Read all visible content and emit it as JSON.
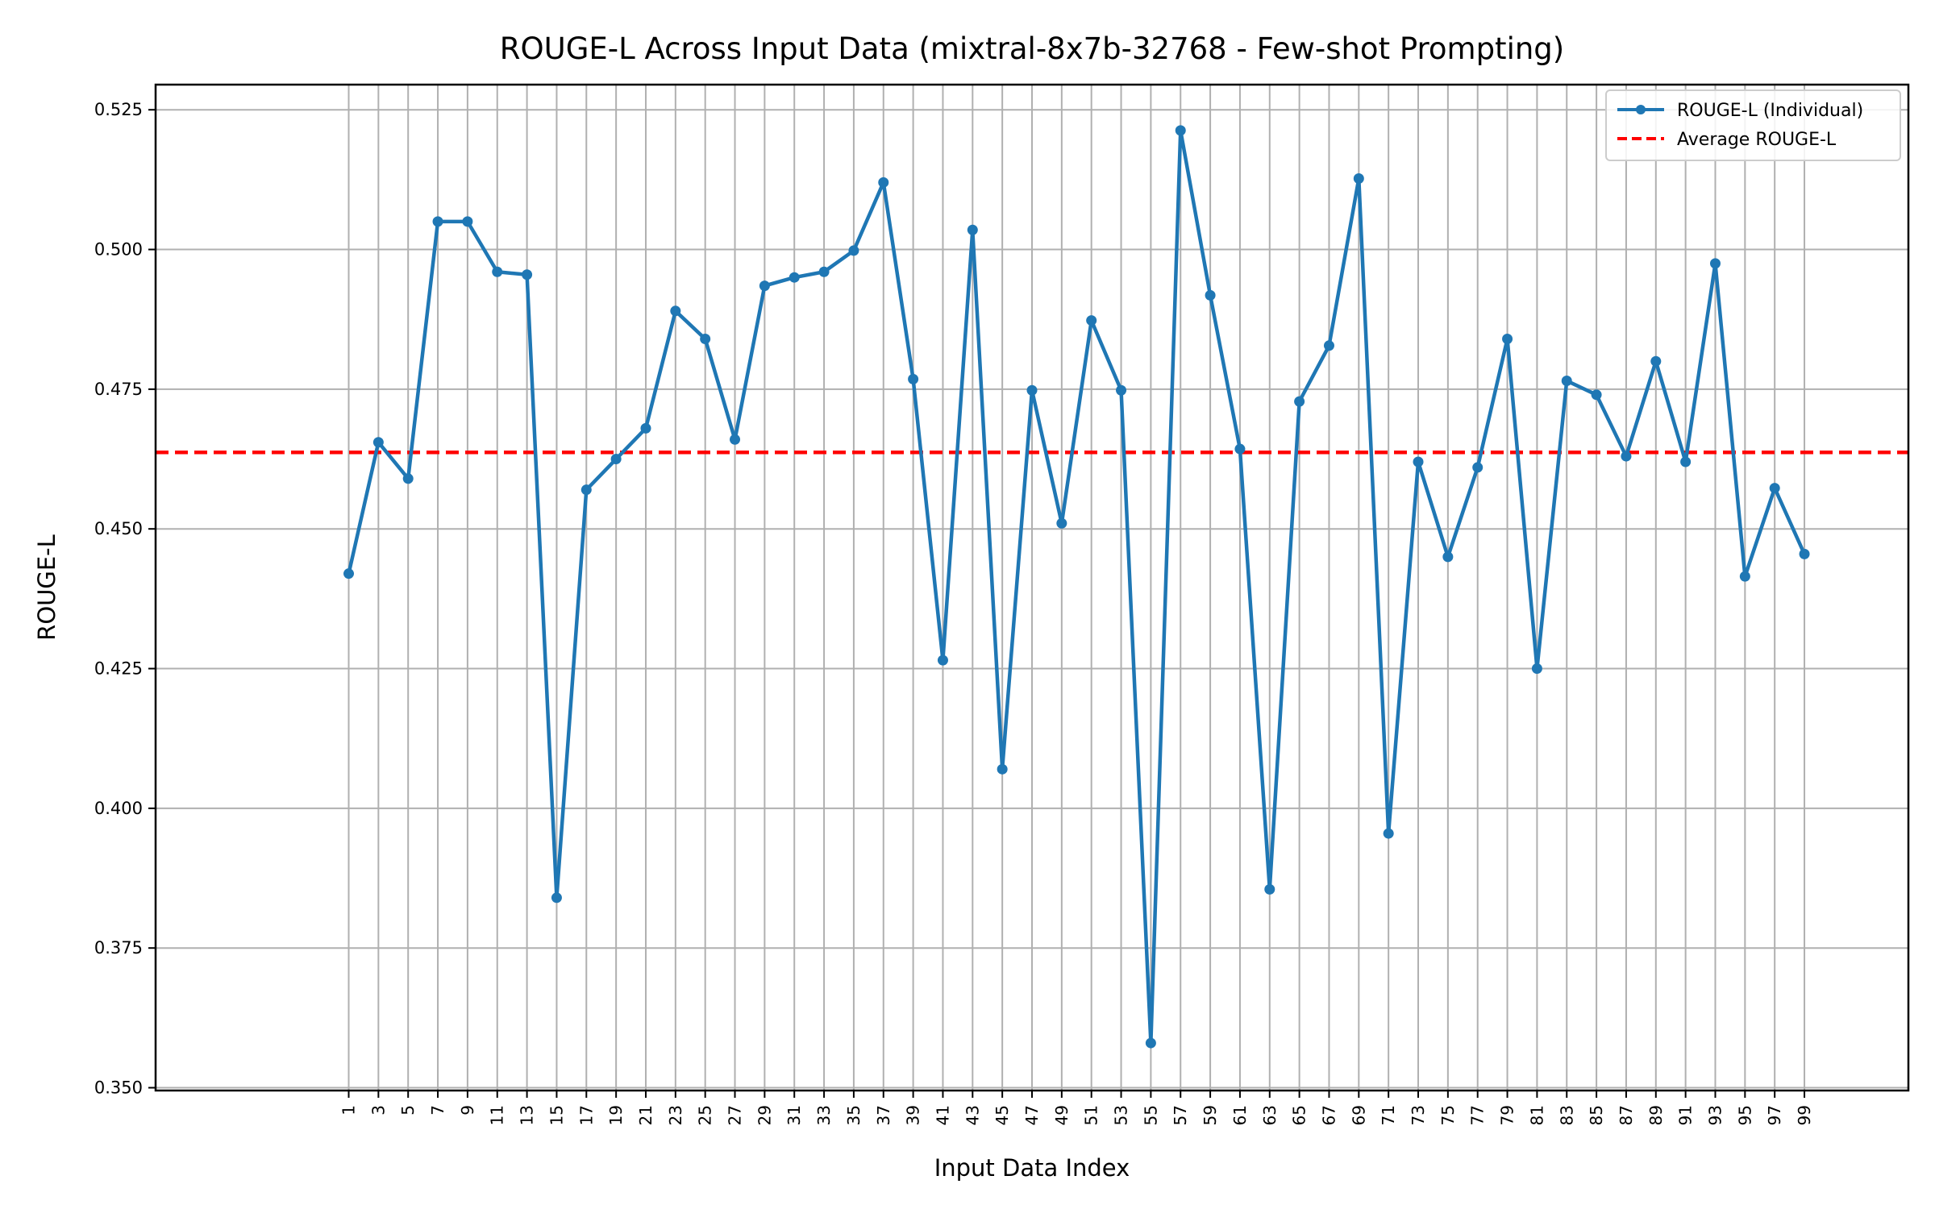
{
  "chart_data": {
    "type": "line",
    "title": "ROUGE-L Across Input Data (mixtral-8x7b-32768 - Few-shot Prompting)",
    "xlabel": "Input Data Index",
    "ylabel": "ROUGE-L",
    "x": [
      1,
      3,
      5,
      7,
      9,
      11,
      13,
      15,
      17,
      19,
      21,
      23,
      25,
      27,
      29,
      31,
      33,
      35,
      37,
      39,
      41,
      43,
      45,
      47,
      49,
      51,
      53,
      55,
      57,
      59,
      61,
      63,
      65,
      67,
      69,
      71,
      73,
      75,
      77,
      79,
      81,
      83,
      85,
      87,
      89,
      91,
      93,
      95,
      97,
      99
    ],
    "x_ticks": [
      1,
      3,
      5,
      7,
      9,
      11,
      13,
      15,
      17,
      19,
      21,
      23,
      25,
      27,
      29,
      31,
      33,
      35,
      37,
      39,
      41,
      43,
      45,
      47,
      49,
      51,
      53,
      55,
      57,
      59,
      61,
      63,
      65,
      67,
      69,
      71,
      73,
      75,
      77,
      79,
      81,
      83,
      85,
      87,
      89,
      91,
      93,
      95,
      97,
      99
    ],
    "y_ticks": [
      "0.350",
      "0.375",
      "0.400",
      "0.425",
      "0.450",
      "0.475",
      "0.500",
      "0.525"
    ],
    "xlim": [
      -12,
      106
    ],
    "ylim": [
      0.3495,
      0.5295
    ],
    "series": [
      {
        "name": "ROUGE-L (Individual)",
        "color": "#1f77b4",
        "style": "solid-line-with-markers",
        "values": [
          0.442,
          0.4655,
          0.459,
          0.505,
          0.505,
          0.496,
          0.4955,
          0.384,
          0.457,
          0.4625,
          0.468,
          0.489,
          0.484,
          0.466,
          0.4935,
          0.495,
          0.496,
          0.4998,
          0.512,
          0.4768,
          0.4265,
          0.5035,
          0.407,
          0.4748,
          0.451,
          0.4873,
          0.4748,
          0.358,
          0.5213,
          0.4918,
          0.4643,
          0.3855,
          0.4728,
          0.4828,
          0.5127,
          0.3955,
          0.462,
          0.445,
          0.461,
          0.484,
          0.425,
          0.4765,
          0.474,
          0.463,
          0.48,
          0.462,
          0.4975,
          0.4415,
          0.4573,
          0.4455
        ]
      },
      {
        "name": "Average ROUGE-L",
        "color": "#ff0000",
        "style": "dashed",
        "value": 0.4637
      }
    ],
    "grid": true,
    "legend_position": "top-right"
  }
}
